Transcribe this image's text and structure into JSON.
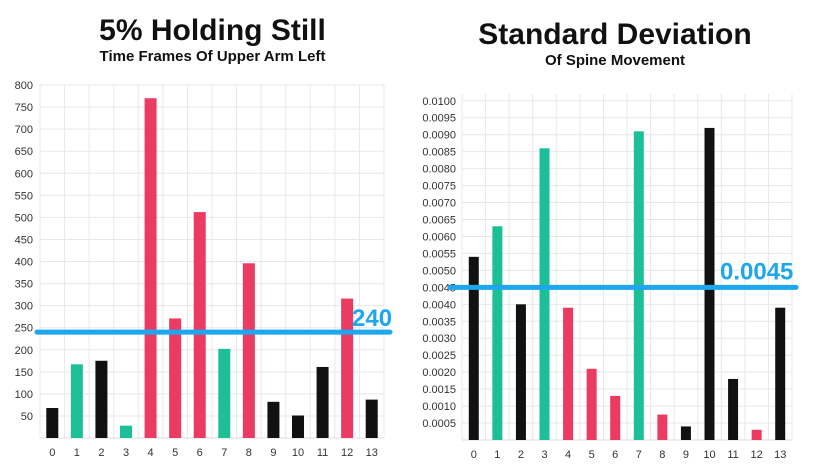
{
  "colors": {
    "black": "#111111",
    "green": "#1dbf97",
    "red": "#ec3b62",
    "reference_line": "#1ea7ef",
    "grid": "#e8e8e8"
  },
  "chart_data": [
    {
      "type": "bar",
      "title": "5% Holding Still",
      "subtitle": "Time Frames Of Upper Arm Left",
      "xlabel": "",
      "ylabel": "",
      "categories": [
        "0",
        "1",
        "2",
        "3",
        "4",
        "5",
        "6",
        "7",
        "8",
        "9",
        "10",
        "11",
        "12",
        "13"
      ],
      "values": [
        68,
        167,
        175,
        28,
        770,
        271,
        512,
        202,
        396,
        82,
        51,
        161,
        316,
        87
      ],
      "bar_colors": [
        "black",
        "green",
        "black",
        "green",
        "red",
        "red",
        "red",
        "green",
        "red",
        "black",
        "black",
        "black",
        "red",
        "black"
      ],
      "ylim": [
        0,
        800
      ],
      "yticks": [
        "50",
        "100",
        "150",
        "200",
        "250",
        "300",
        "350",
        "400",
        "450",
        "500",
        "550",
        "600",
        "650",
        "700",
        "750",
        "800"
      ],
      "ytick_values": [
        50,
        100,
        150,
        200,
        250,
        300,
        350,
        400,
        450,
        500,
        550,
        600,
        650,
        700,
        750,
        800
      ],
      "reference_line": {
        "value": 240,
        "label": "240"
      },
      "grid": true,
      "legend": "none"
    },
    {
      "type": "bar",
      "title": "Standard Deviation",
      "subtitle": "Of Spine Movement",
      "xlabel": "",
      "ylabel": "",
      "categories": [
        "0",
        "1",
        "2",
        "3",
        "4",
        "5",
        "6",
        "7",
        "8",
        "9",
        "10",
        "11",
        "12",
        "13"
      ],
      "values": [
        0.0054,
        0.0063,
        0.004,
        0.0086,
        0.0039,
        0.0021,
        0.0013,
        0.0091,
        0.00075,
        0.0004,
        0.0092,
        0.0018,
        0.0003,
        0.0039
      ],
      "bar_colors": [
        "black",
        "green",
        "black",
        "green",
        "red",
        "red",
        "red",
        "green",
        "red",
        "black",
        "black",
        "black",
        "red",
        "black"
      ],
      "ylim": [
        0,
        0.0102
      ],
      "yticks": [
        "0.0005",
        "0.0010",
        "0.0015",
        "0.0020",
        "0.0025",
        "0.0030",
        "0.0035",
        "0.0040",
        "0.0045",
        "0.0050",
        "0.0055",
        "0.0060",
        "0.0065",
        "0.0070",
        "0.0075",
        "0.0080",
        "0.0085",
        "0.0090",
        "0.0095",
        "0.0100"
      ],
      "ytick_values": [
        0.0005,
        0.001,
        0.0015,
        0.002,
        0.0025,
        0.003,
        0.0035,
        0.004,
        0.0045,
        0.005,
        0.0055,
        0.006,
        0.0065,
        0.007,
        0.0075,
        0.008,
        0.0085,
        0.009,
        0.0095,
        0.01
      ],
      "reference_line": {
        "value": 0.0045,
        "label": "0.0045"
      },
      "grid": true,
      "legend": "none"
    }
  ]
}
